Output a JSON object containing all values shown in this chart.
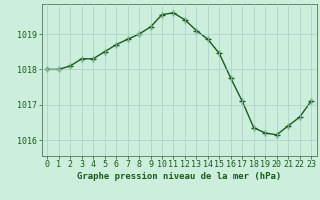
{
  "x": [
    0,
    1,
    2,
    3,
    4,
    5,
    6,
    7,
    8,
    9,
    10,
    11,
    12,
    13,
    14,
    15,
    16,
    17,
    18,
    19,
    20,
    21,
    22,
    23
  ],
  "y": [
    1018.0,
    1018.0,
    1018.1,
    1018.3,
    1018.3,
    1018.5,
    1018.7,
    1018.85,
    1019.0,
    1019.2,
    1019.55,
    1019.6,
    1019.4,
    1019.1,
    1018.85,
    1018.45,
    1017.75,
    1017.1,
    1016.35,
    1016.2,
    1016.15,
    1016.4,
    1016.65,
    1017.1
  ],
  "line_color": "#1a5c1a",
  "marker": "+",
  "marker_size": 4,
  "marker_linewidth": 1.0,
  "line_width": 1.0,
  "background_color": "#cceedd",
  "grid_color": "#aacccc",
  "ylabel_ticks": [
    1016,
    1017,
    1018,
    1019
  ],
  "xlabel": "Graphe pression niveau de la mer (hPa)",
  "xlabel_fontsize": 6.5,
  "tick_fontsize": 6,
  "xlim": [
    -0.5,
    23.5
  ],
  "ylim": [
    1015.55,
    1019.85
  ]
}
